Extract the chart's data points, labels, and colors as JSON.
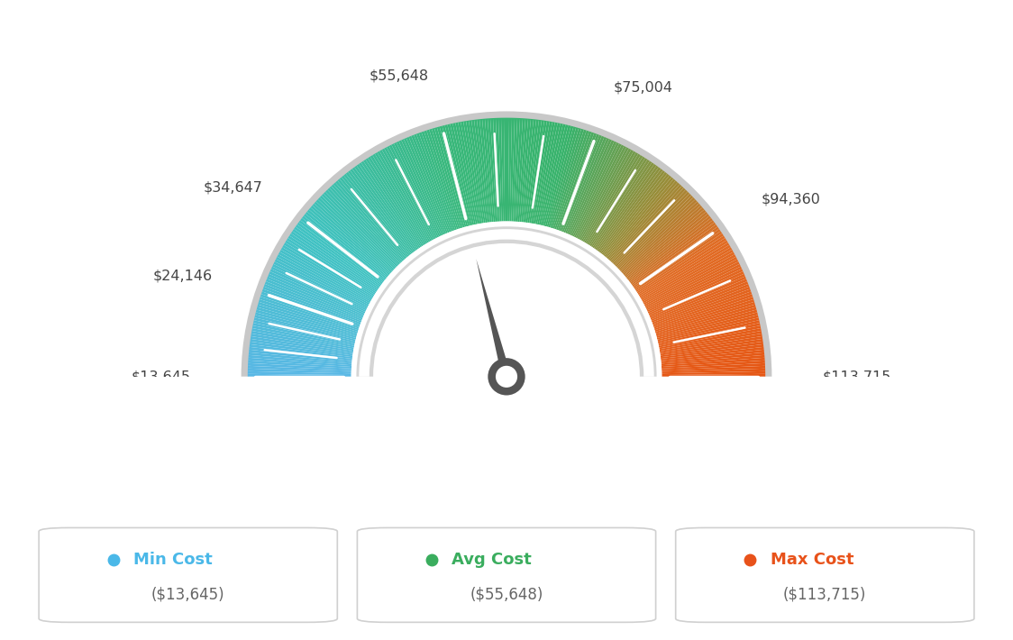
{
  "min_val": 13645,
  "max_val": 113715,
  "avg_val": 55648,
  "labels": {
    "min": "$13,645",
    "v2": "$24,146",
    "v3": "$34,647",
    "mid": "$55,648",
    "v5": "$75,004",
    "v6": "$94,360",
    "max": "$113,715"
  },
  "legend": [
    {
      "label": "Min Cost",
      "sublabel": "($13,645)",
      "color": "#4ab8e8"
    },
    {
      "label": "Avg Cost",
      "sublabel": "($55,648)",
      "color": "#3aad5e"
    },
    {
      "label": "Max Cost",
      "sublabel": "($113,715)",
      "color": "#e8521a"
    }
  ],
  "color_stops": [
    [
      0.0,
      [
        0.35,
        0.72,
        0.9
      ]
    ],
    [
      0.25,
      [
        0.28,
        0.75,
        0.72
      ]
    ],
    [
      0.5,
      [
        0.25,
        0.72,
        0.45
      ]
    ],
    [
      0.65,
      [
        0.55,
        0.68,
        0.32
      ]
    ],
    [
      0.8,
      [
        0.85,
        0.48,
        0.18
      ]
    ],
    [
      1.0,
      [
        0.91,
        0.38,
        0.1
      ]
    ]
  ],
  "bg_color": "#ffffff",
  "needle_color": "#555555",
  "border_color": "#d8d8d8",
  "inner_arc_color": "#d0d0d0"
}
